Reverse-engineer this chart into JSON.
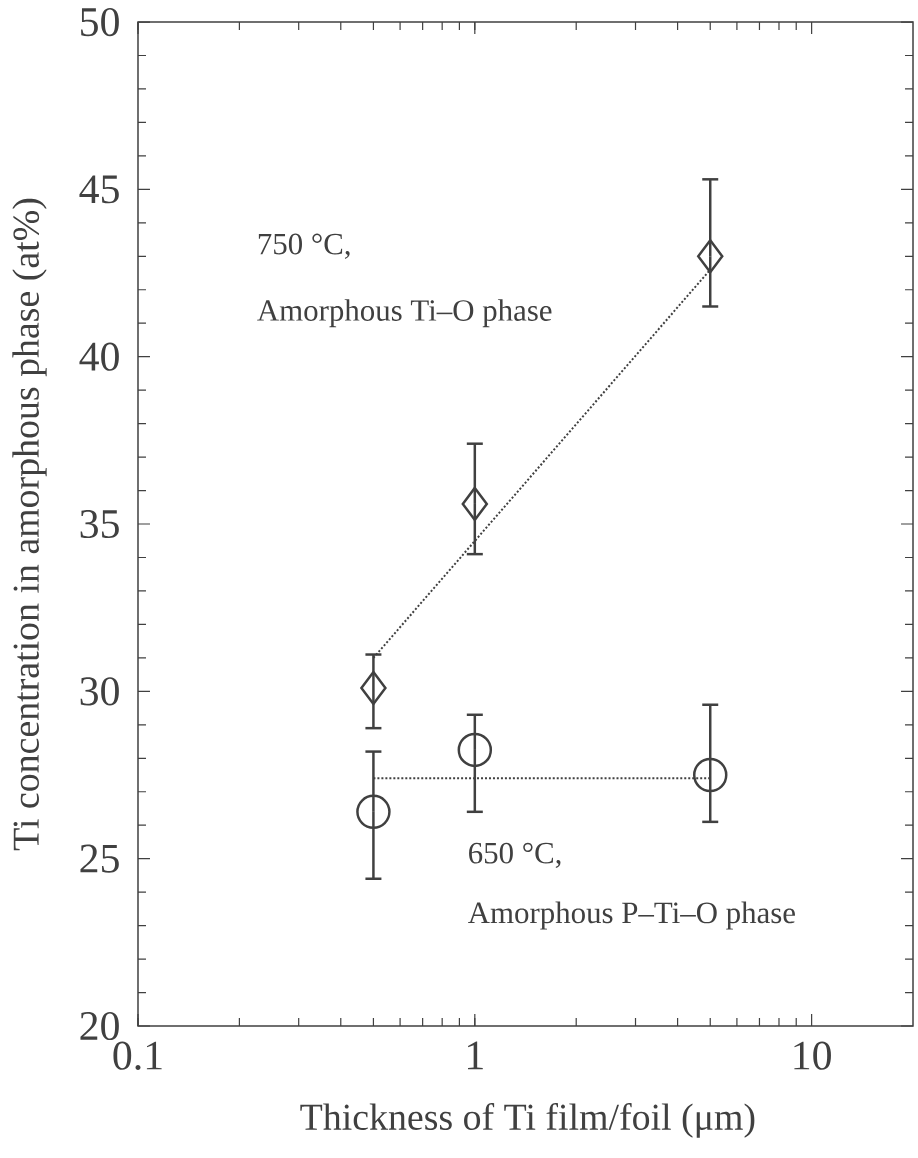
{
  "chart_data": {
    "type": "scatter",
    "xlabel": "Thickness of Ti film/foil (μm)",
    "ylabel": "Ti concentration in amorphous phase (at%)",
    "log": "x",
    "xlim": [
      0.1,
      20
    ],
    "ylim": [
      20,
      50
    ],
    "xticks": [
      0.1,
      1,
      10
    ],
    "yticks": [
      20,
      25,
      30,
      35,
      40,
      45,
      50
    ],
    "annotations": [
      "750 °C,",
      "Amorphous  Ti–O phase",
      "650 °C,",
      "Amorphous P–Ti–O phase"
    ],
    "series": [
      {
        "marker": "diamond",
        "color": "#404040",
        "x": [
          0.5,
          1,
          5
        ],
        "values": [
          30.1,
          35.6,
          43.0
        ],
        "errors": [
          [
            28.9,
            31.1
          ],
          [
            34.1,
            37.4
          ],
          [
            41.5,
            45.3
          ]
        ]
      },
      {
        "marker": "circle",
        "color": "#404040",
        "x": [
          0.5,
          1,
          5
        ],
        "values": [
          26.4,
          28.25,
          27.5
        ],
        "errors": [
          [
            24.4,
            28.2
          ],
          [
            26.4,
            29.3
          ],
          [
            26.1,
            29.6
          ]
        ]
      },
      {
        "type": "line",
        "line_style": "dotted",
        "marker": "none",
        "color": "#404040",
        "x": [
          0.5,
          5
        ],
        "values": [
          31.0,
          42.6
        ]
      },
      {
        "type": "line",
        "line_style": "dotted",
        "marker": "none",
        "color": "#404040",
        "x": [
          0.5,
          5
        ],
        "values": [
          27.4,
          27.4
        ]
      }
    ]
  }
}
